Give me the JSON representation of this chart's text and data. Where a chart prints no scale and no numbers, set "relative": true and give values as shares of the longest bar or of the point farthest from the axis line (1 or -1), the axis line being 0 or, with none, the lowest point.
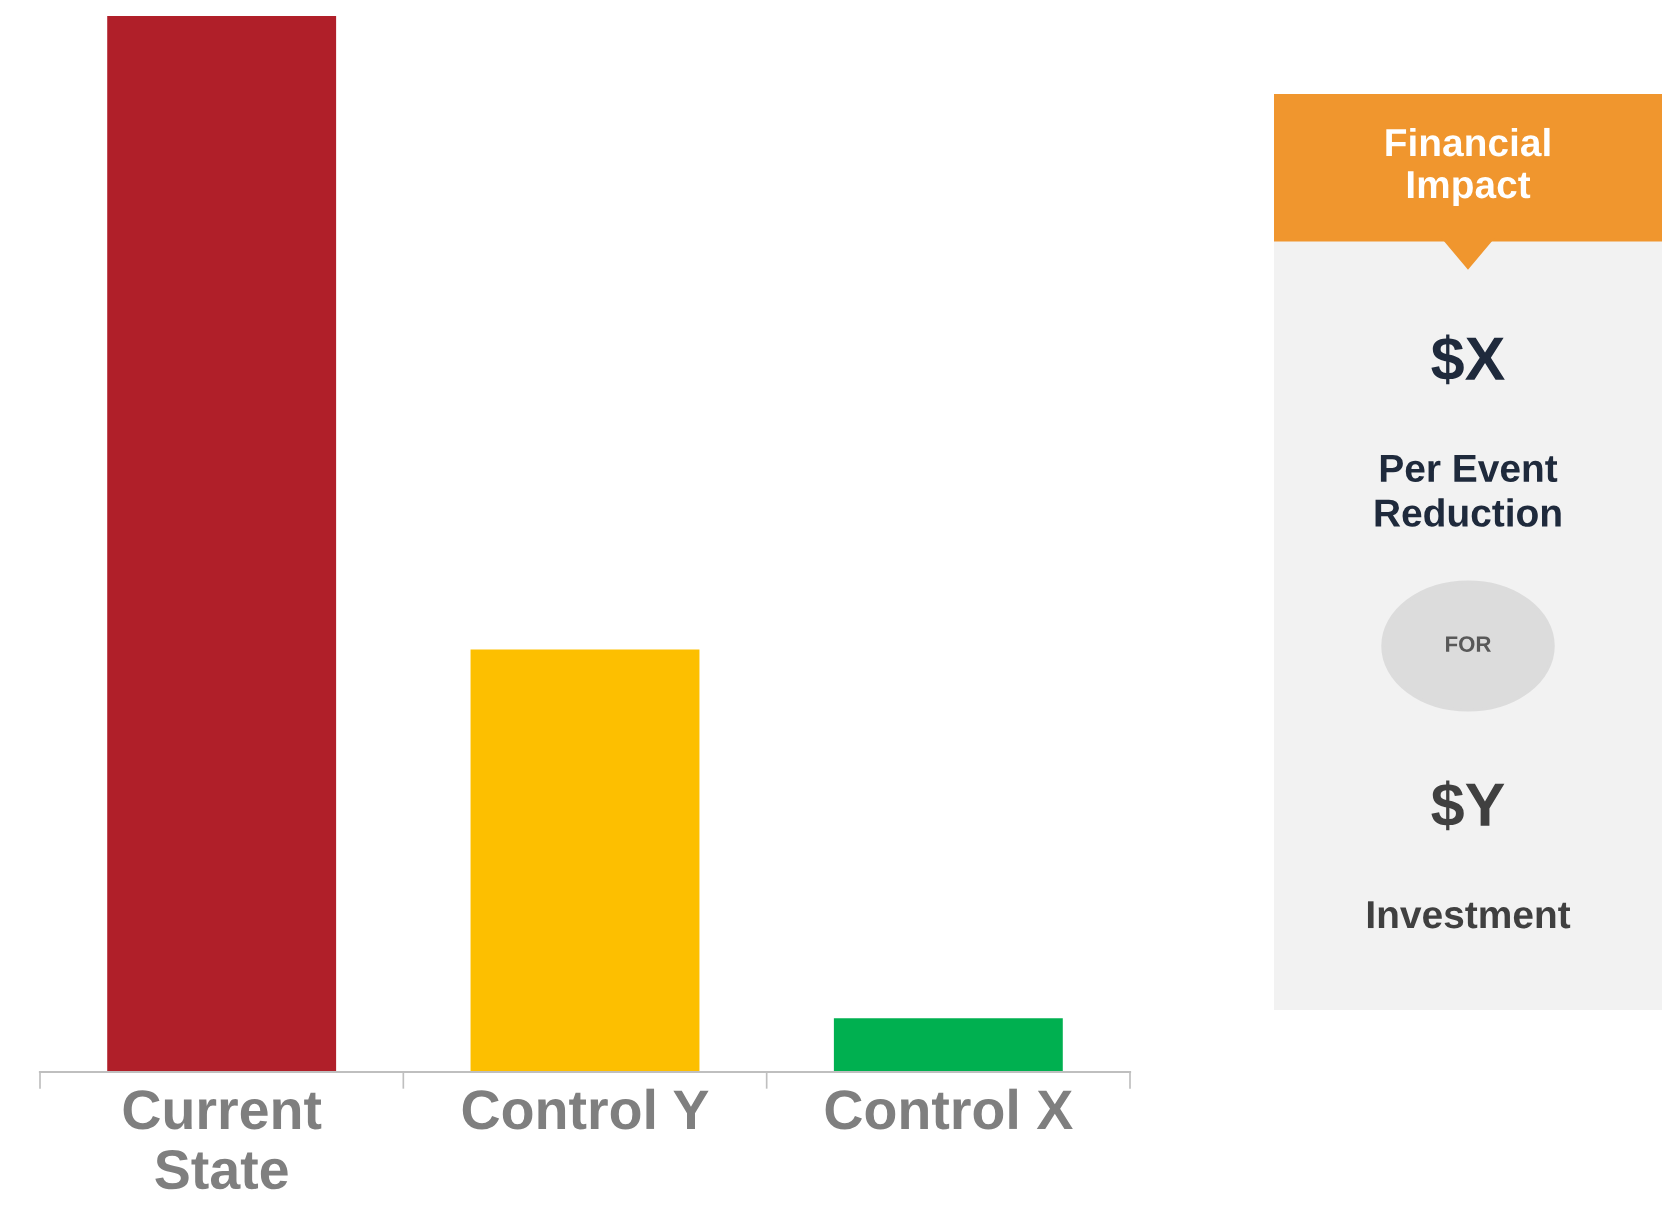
{
  "chart_data": [
    {
      "type": "bar",
      "relative": true,
      "categories": [
        "Current\nState",
        "Control Y",
        "Control X"
      ],
      "values": [
        1,
        0.4,
        0.051
      ],
      "colors": [
        "#b01f29",
        "#fdbf00",
        "#00b050"
      ],
      "grid": false,
      "legend": false
    },
    {
      "type": "other",
      "title": "Financial Impact",
      "annotations": [
        "$X",
        "Per Event Reduction",
        "FOR",
        "$Y",
        "Investment"
      ]
    }
  ]
}
